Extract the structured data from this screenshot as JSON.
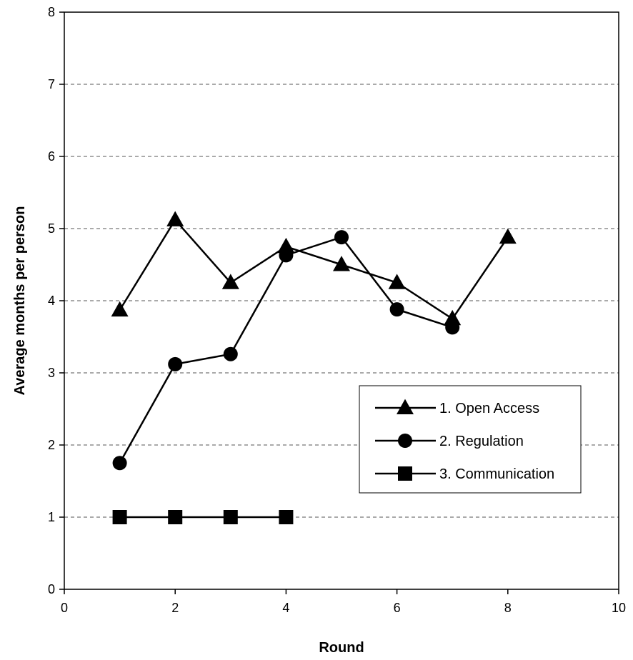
{
  "chart_data": {
    "type": "line",
    "title": "",
    "xlabel": "Round",
    "ylabel": "Average months per person",
    "xlim": [
      0,
      10
    ],
    "ylim": [
      0,
      8
    ],
    "x_ticks": [
      0,
      2,
      4,
      6,
      8,
      10
    ],
    "y_ticks": [
      0,
      1,
      2,
      3,
      4,
      5,
      6,
      7,
      8
    ],
    "grid": "horizontal dashed",
    "legend_position": "right",
    "series": [
      {
        "name": "1. Open Access",
        "marker": "triangle",
        "x": [
          1,
          2,
          3,
          4,
          5,
          6,
          7,
          8
        ],
        "values": [
          3.87,
          5.12,
          4.25,
          4.75,
          4.5,
          4.25,
          3.75,
          4.88
        ]
      },
      {
        "name": "2. Regulation",
        "marker": "circle",
        "x": [
          1,
          2,
          3,
          4,
          5,
          6,
          7
        ],
        "values": [
          1.75,
          3.12,
          3.26,
          4.63,
          4.88,
          3.88,
          3.63
        ]
      },
      {
        "name": "3. Communication",
        "marker": "square",
        "x": [
          1,
          2,
          3,
          4
        ],
        "values": [
          1,
          1,
          1,
          1
        ]
      }
    ]
  }
}
